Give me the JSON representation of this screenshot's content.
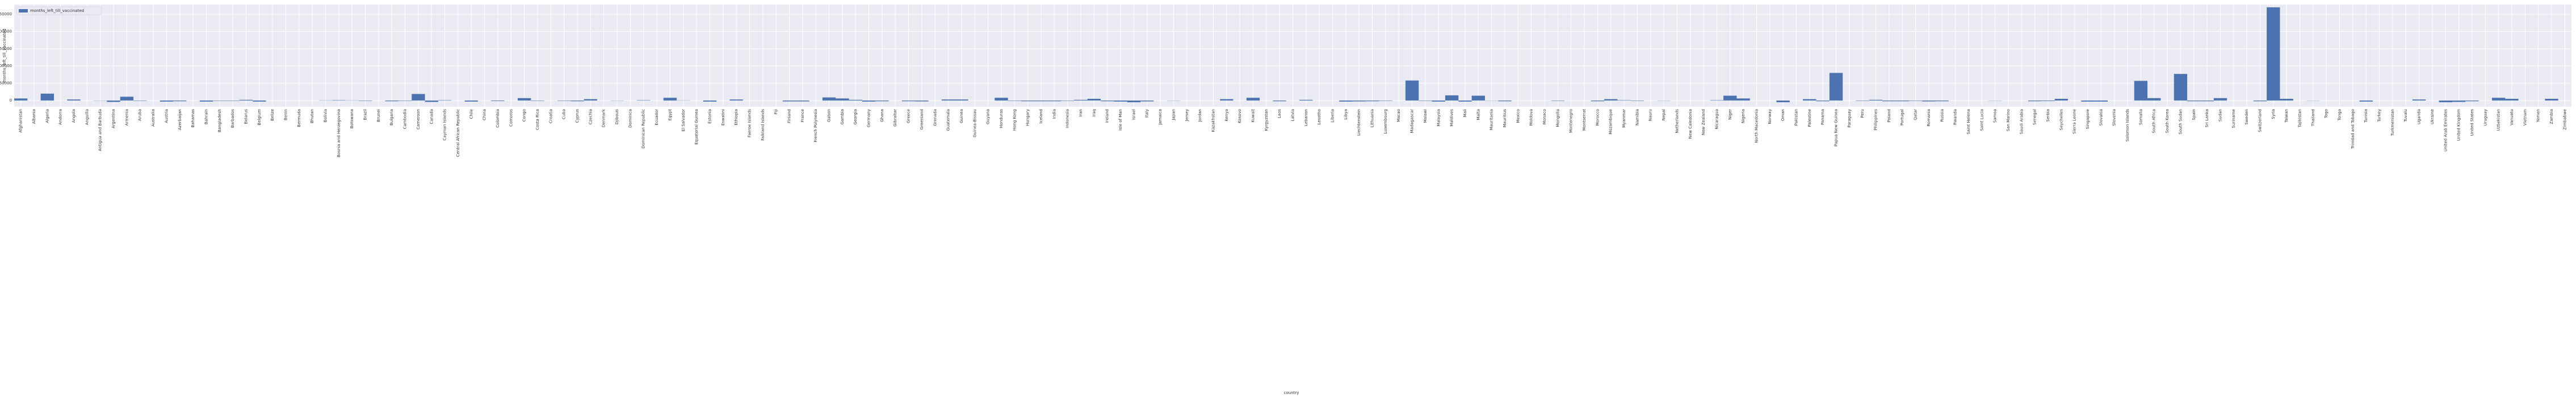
{
  "chart_data": {
    "type": "bar",
    "x_label": "country",
    "y_label": "months_left_till_vaccinated",
    "categories": [
      "Afghanistan",
      "Albania",
      "Algeria",
      "Andorra",
      "Angola",
      "Anguilla",
      "Antigua and Barbuda",
      "Argentina",
      "Armenia",
      "Aruba",
      "Australia",
      "Austria",
      "Azerbaijan",
      "Bahamas",
      "Bahrain",
      "Bangladesh",
      "Barbados",
      "Belarus",
      "Belgium",
      "Belize",
      "Benin",
      "Bermuda",
      "Bhutan",
      "Bolivia",
      "Bosnia and Herzegovina",
      "Botswana",
      "Brazil",
      "Brunei",
      "Bulgaria",
      "Cambodia",
      "Cameroon",
      "Canada",
      "Cayman Islands",
      "Central African Republic",
      "Chile",
      "China",
      "Colombia",
      "Comoros",
      "Congo",
      "Costa Rica",
      "Croatia",
      "Cuba",
      "Cyprus",
      "Czechia",
      "Denmark",
      "Djibouti",
      "Dominica",
      "Dominican Republic",
      "Ecuador",
      "Egypt",
      "El Salvador",
      "Equatorial Guinea",
      "Estonia",
      "Eswatini",
      "Ethiopia",
      "Faeroe Islands",
      "Falkland Islands",
      "Fiji",
      "Finland",
      "France",
      "French Polynesia",
      "Gabon",
      "Gambia",
      "Georgia",
      "Germany",
      "Ghana",
      "Gibraltar",
      "Greece",
      "Greenland",
      "Grenada",
      "Guatemala",
      "Guinea",
      "Guinea-Bissau",
      "Guyana",
      "Honduras",
      "Hong Kong",
      "Hungary",
      "Iceland",
      "India",
      "Indonesia",
      "Iran",
      "Iraq",
      "Ireland",
      "Isle of Man",
      "Israel",
      "Italy",
      "Jamaica",
      "Japan",
      "Jersey",
      "Jordan",
      "Kazakhstan",
      "Kenya",
      "Kosovo",
      "Kuwait",
      "Kyrgyzstan",
      "Laos",
      "Latvia",
      "Lebanon",
      "Lesotho",
      "Liberia",
      "Libya",
      "Liechtenstein",
      "Lithuania",
      "Luxembourg",
      "Macao",
      "Madagascar",
      "Malawi",
      "Malaysia",
      "Maldives",
      "Mali",
      "Malta",
      "Mauritania",
      "Mauritius",
      "Mexico",
      "Moldova",
      "Monaco",
      "Mongolia",
      "Montenegro",
      "Montserrat",
      "Morocco",
      "Mozambique",
      "Myanmar",
      "Namibia",
      "Nauru",
      "Nepal",
      "Netherlands",
      "New Caledonia",
      "New Zealand",
      "Nicaragua",
      "Niger",
      "Nigeria",
      "North Macedonia",
      "Norway",
      "Oman",
      "Pakistan",
      "Palestine",
      "Panama",
      "Papua New Guinea",
      "Paraguay",
      "Peru",
      "Philippines",
      "Poland",
      "Portugal",
      "Qatar",
      "Romania",
      "Russia",
      "Rwanda",
      "Saint Helena",
      "Saint Lucia",
      "Samoa",
      "San Marino",
      "Saudi Arabia",
      "Senegal",
      "Serbia",
      "Seychelles",
      "Sierra Leone",
      "Singapore",
      "Slovakia",
      "Slovenia",
      "Solomon Islands",
      "Somalia",
      "South Africa",
      "South Korea",
      "South Sudan",
      "Spain",
      "Sri Lanka",
      "Sudan",
      "Suriname",
      "Sweden",
      "Switzerland",
      "Syria",
      "Taiwan",
      "Tajikistan",
      "Thailand",
      "Togo",
      "Tonga",
      "Trinidad and Tobago",
      "Tunisia",
      "Turkey",
      "Turkmenistan",
      "Tuvalu",
      "Uganda",
      "Ukraine",
      "United Arab Emirates",
      "United Kingdom",
      "United States",
      "Uruguay",
      "Uzbekistan",
      "Vanuatu",
      "Vietnam",
      "Yemen",
      "Zambia",
      "Zimbabwe"
    ],
    "series": [
      {
        "name": "months_left_till_vaccinated",
        "color": "#4c72b0",
        "values": [
          6000,
          0,
          20000,
          0,
          3000,
          0,
          -500,
          -4000,
          11000,
          -1000,
          0,
          -3000,
          -2000,
          0,
          -3000,
          -1000,
          -1000,
          2000,
          -3000,
          0,
          0,
          0,
          0,
          500,
          1000,
          500,
          -1000,
          0,
          -2000,
          -1000,
          19000,
          -4000,
          1000,
          0,
          -3000,
          0,
          -1500,
          0,
          7000,
          -1000,
          0,
          -1000,
          -2000,
          4000,
          0,
          -500,
          0,
          1000,
          0,
          8000,
          500,
          0,
          -3000,
          0,
          3000,
          0,
          0,
          0,
          -2500,
          -2500,
          0,
          9000,
          6000,
          2000,
          -3000,
          -2000,
          0,
          -2000,
          -2500,
          0,
          3000,
          3000,
          0,
          0,
          8000,
          -1000,
          -2000,
          -2000,
          -2000,
          -1000,
          2000,
          5000,
          -2000,
          -3000,
          -5000,
          -2500,
          0,
          -500,
          0,
          0,
          0,
          4000,
          0,
          8000,
          0,
          -2000,
          0,
          2000,
          0,
          0,
          -3000,
          -2500,
          -2000,
          -1000,
          0,
          58000,
          -1000,
          -3000,
          15000,
          -3000,
          14000,
          -500,
          -2000,
          0,
          0,
          0,
          -1000,
          0,
          0,
          -2000,
          4000,
          1000,
          -1000,
          0,
          -500,
          0,
          0,
          0,
          1000,
          14000,
          6000,
          0,
          0,
          -5000,
          0,
          4000,
          -2000,
          80000,
          0,
          -1000,
          2000,
          -2000,
          -2000,
          -1000,
          -2500,
          -2000,
          0,
          0,
          0,
          -500,
          0,
          0,
          -2000,
          -1500,
          5000,
          0,
          -3000,
          -3000,
          0,
          0,
          57000,
          7000,
          0,
          77000,
          -2000,
          -2000,
          7000,
          0,
          0,
          -2000,
          270000,
          5000,
          0,
          -500,
          0,
          0,
          0,
          -3000,
          0,
          0,
          0,
          3000,
          0,
          -5000,
          -4000,
          -2000,
          0,
          8000,
          5000,
          0,
          0,
          5000,
          0
        ]
      }
    ],
    "ylim": [
      -18000,
      278000
    ],
    "yticks": [
      0,
      50000,
      100000,
      150000,
      200000,
      250000
    ],
    "grid": true,
    "legend": "upper left"
  }
}
